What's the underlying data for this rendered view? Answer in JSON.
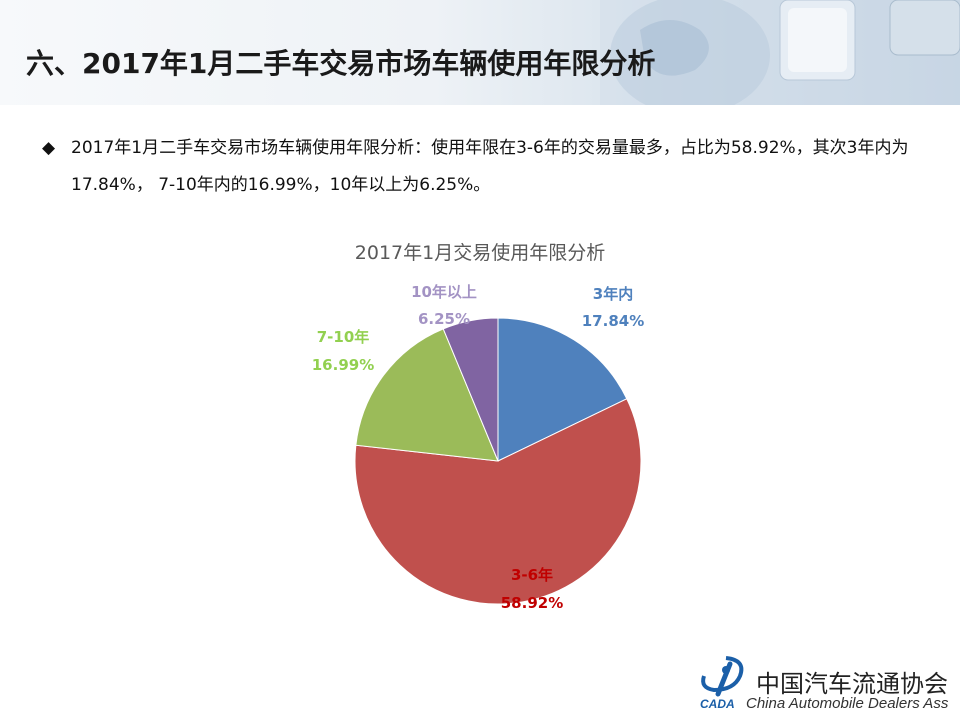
{
  "slide": {
    "title": "六、2017年1月二手车交易市场车辆使用年限分析",
    "bullet_marker": "◆",
    "bullet_text": "2017年1月二手车交易市场车辆使用年限分析：使用年限在3-6年的交易量最多，占比为58.92%，其次3年内为17.84%， 7-10年内的16.99%，10年以上为6.25%。"
  },
  "colors": {
    "accent_blue": "#4f81bd",
    "accent_red": "#c0504d",
    "accent_green": "#9bbb59",
    "accent_purple": "#8064a2",
    "logo_blue": "#1b5fa8"
  },
  "logo": {
    "cn": "中国汽车流通协会",
    "en": "China  Automobile Dealers  Ass",
    "mark_text": "CADA"
  },
  "chart_data": {
    "type": "pie",
    "title": "2017年1月交易使用年限分析",
    "slices": [
      {
        "label": "3年内",
        "value": 17.84,
        "display": "17.84%",
        "color": "#4f81bd",
        "label_color": "#4f81bd"
      },
      {
        "label": "3-6年",
        "value": 58.92,
        "display": "58.92%",
        "color": "#c0504d",
        "label_color": "#c00000"
      },
      {
        "label": "7-10年",
        "value": 16.99,
        "display": "16.99%",
        "color": "#9bbb59",
        "label_color": "#92d050"
      },
      {
        "label": "10年以上",
        "value": 6.25,
        "display": "6.25%",
        "color": "#8064a2",
        "label_color": "#a393c4"
      }
    ],
    "start_angle_deg": 0,
    "direction": "clockwise",
    "legend": "none"
  }
}
